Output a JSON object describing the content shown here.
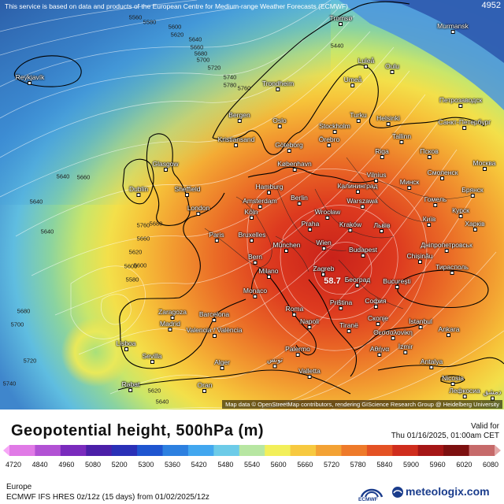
{
  "map": {
    "disclaimer": "This service is based on data and products of the European Centre for Medium-range Weather Forecasts (ECMWF)",
    "corner_id": "4952",
    "attribution": "Map data © OpenStreetMap contributors, rendering GIScience Research Group @ Heidelberg University",
    "center_value": "58.7",
    "contour_labels": [
      "5560",
      "5580",
      "5600",
      "5620",
      "5640",
      "5660",
      "5680",
      "5700",
      "5720",
      "5740",
      "5760",
      "5780",
      "5440",
      "5640",
      "5640",
      "5580",
      "5600",
      "5620",
      "5640",
      "5660",
      "5680",
      "5700",
      "5720",
      "5740",
      "5760",
      "5680",
      "5660",
      "5640",
      "5620",
      "5600"
    ],
    "cities": [
      "Murmansk",
      "Reykjavík",
      "Tromsø",
      "Luleå",
      "Oulu",
      "Umeå",
      "Trondheim",
      "Bergen",
      "Oslo",
      "Stockholm",
      "Turku",
      "Helsinki",
      "Санкт-Петербург",
      "Петрозаводск",
      "Kristiansand",
      "Göteborg",
      "Örebro",
      "Tallinn",
      "Псков",
      "Riga",
      "Glasgow",
      "København",
      "Vilnius",
      "Минск",
      "Смоленск",
      "Москва",
      "Dublin",
      "Sheffield",
      "Hamburg",
      "Калининград",
      "Гомель",
      "Брянск",
      "London",
      "Amsterdam",
      "Berlin",
      "Warszawa",
      "Курск",
      "Köln",
      "Wrocław",
      "Київ",
      "Харків",
      "Paris",
      "Bruxelles",
      "Praha",
      "Kraków",
      "Львів",
      "Дніпропетровськ",
      "München",
      "Wien",
      "Bern",
      "Budapest",
      "Chișinău",
      "Тирасполь",
      "Milano",
      "Zagreb",
      "Београд",
      "Bucureşti",
      "Monaco",
      "Roma",
      "Priština",
      "София",
      "Zaragoza",
      "Barcelona",
      "Napoli",
      "Tiranë",
      "Скопје",
      "İstanbul",
      "Madrid",
      "Valencia / València",
      "Θεσσαλονίκη",
      "Ankara",
      "Lisboa",
      "Sevilla",
      "Palermo",
      "Αθήνα",
      "İzmir",
      "Alger",
      "تونس",
      "Valletta",
      "Antalya",
      "Rabat",
      "Oran",
      "Nicosia",
      "Лефкосиа",
      "دمشق"
    ],
    "colors": {
      "low": "#4db2e8",
      "mid": "#f7e34a",
      "high": "#d9321f",
      "coast": "#000000"
    }
  },
  "footer": {
    "title": "Geopotential height, 500hPa (m)",
    "valid_label": "Valid for",
    "valid_time": "Thu 01/16/2025, 01:00am CET",
    "region": "Europe",
    "model_run": "ECMWF IFS HRES 0z/12z (15 days) from 01/02/2025/12z",
    "ecmwf_logo_text": "ECMWF",
    "brand": "meteologix.com",
    "scale_ticks": [
      "4720",
      "4840",
      "4960",
      "5080",
      "5200",
      "5300",
      "5360",
      "5420",
      "5480",
      "5540",
      "5600",
      "5660",
      "5720",
      "5780",
      "5840",
      "5900",
      "5960",
      "6020",
      "6080"
    ],
    "scale_colors": [
      "#f6a7f6",
      "#e07ae6",
      "#b252d4",
      "#7a2bbd",
      "#4b1fa8",
      "#2a30b7",
      "#1f55d0",
      "#2d80e0",
      "#42a7ef",
      "#6dcbe8",
      "#b7e6a2",
      "#f2ef5a",
      "#f7c940",
      "#f3a234",
      "#ee7a2a",
      "#e45224",
      "#cf2d1d",
      "#a51616",
      "#7d1010",
      "#c66a6a",
      "#e3a8a8"
    ]
  }
}
